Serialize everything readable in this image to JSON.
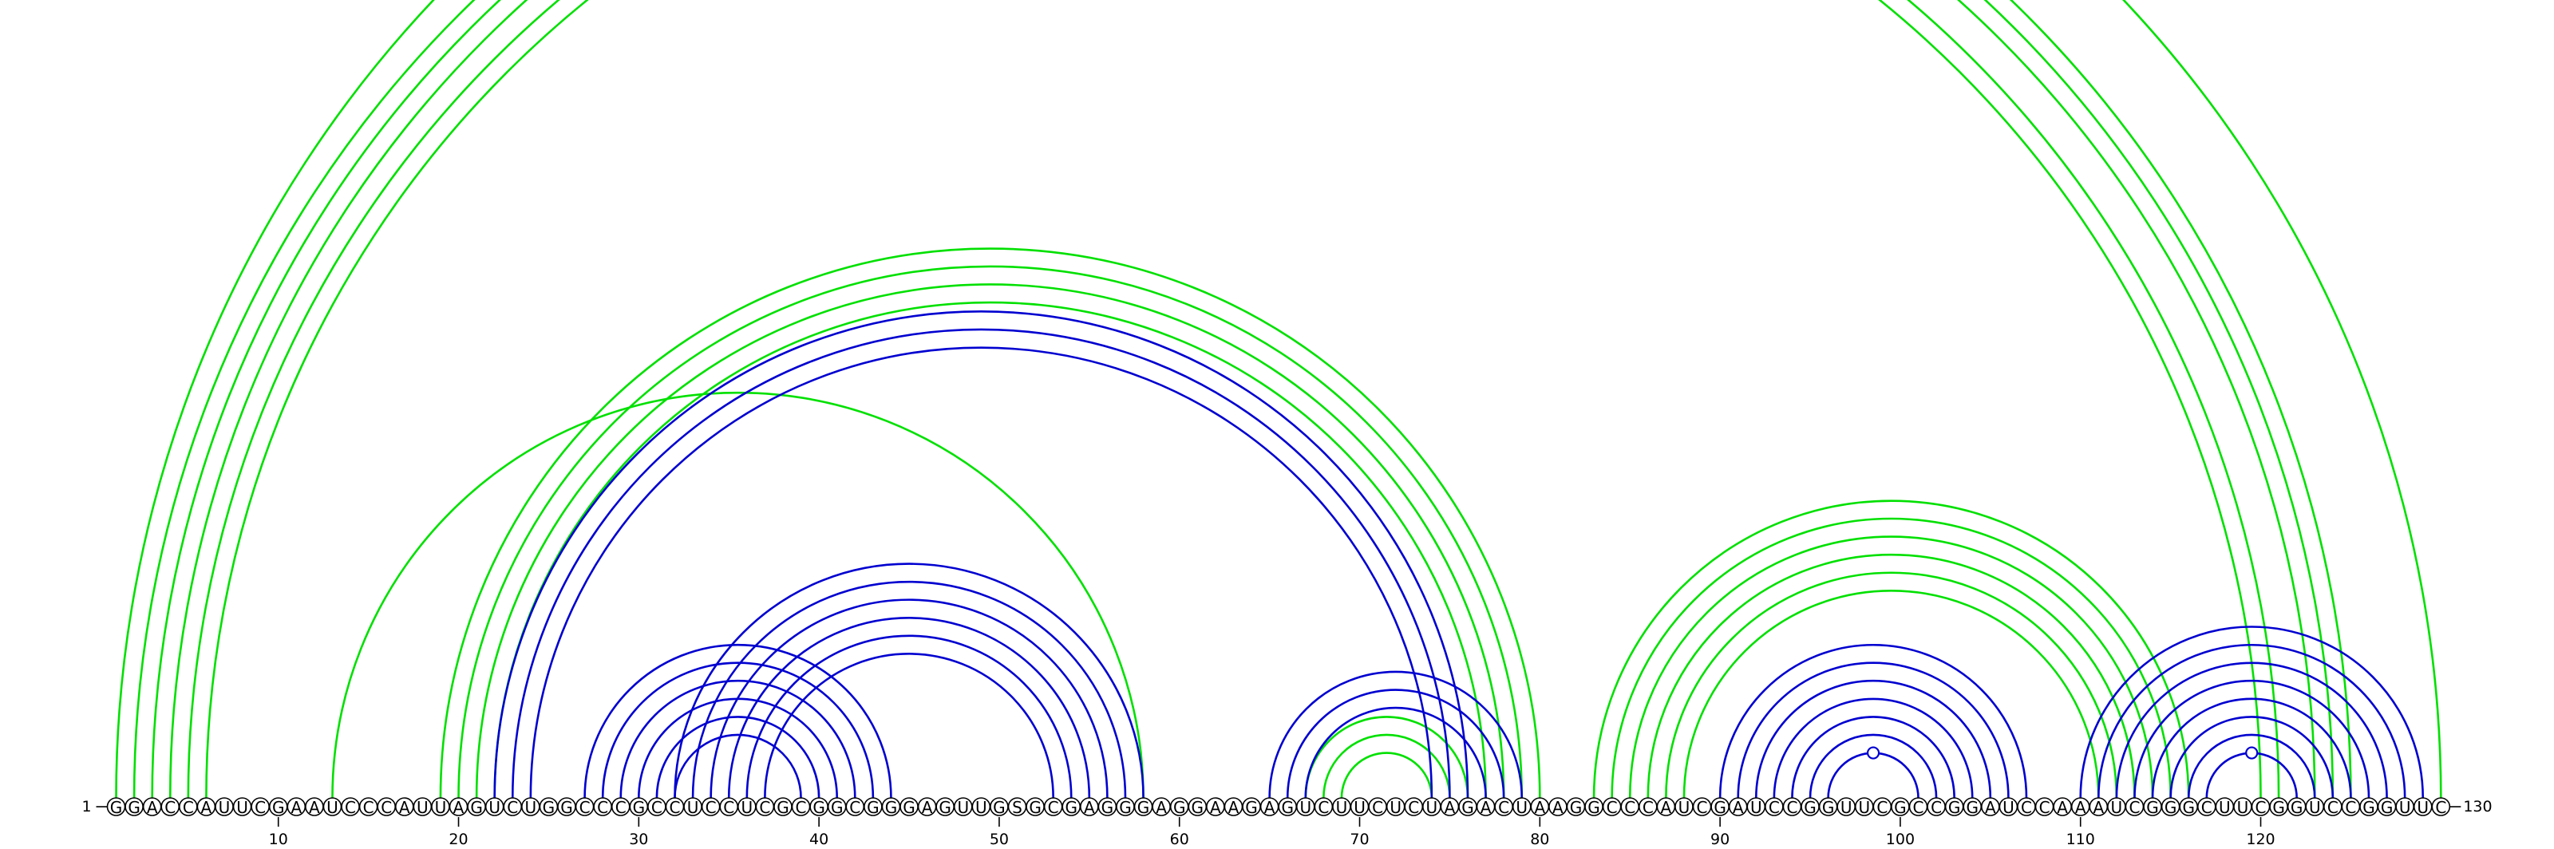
{
  "sequence": "GGACCAUUCGAAUCCCAUUAGUCUGGCCCGCCUCCUCGCGGCGGGAGUUGSGCGAGGGAGGAAGAGUCUUCUCUAGACUAAGGCCCAUCGAUCCGGUUCGCCGGAUCCAAAUCGGGCUUCGGUCCGGUUC",
  "start_label": "1",
  "end_label": "130",
  "ticks": [
    10,
    20,
    30,
    40,
    50,
    60,
    70,
    80,
    90,
    100,
    110,
    120
  ],
  "colors": {
    "green": "#00e000",
    "blue": "#0000d0"
  },
  "chart_data": {
    "type": "arc-diagram",
    "sequence_length": 130,
    "green_helices": [
      {
        "i": 1,
        "j": 130,
        "n": 1,
        "marker": true
      },
      {
        "i": 2,
        "j": 125,
        "n": 3
      },
      {
        "i": 5,
        "j": 121,
        "n": 2
      },
      {
        "i": 13,
        "j": 58,
        "n": 1
      },
      {
        "i": 19,
        "j": 80,
        "n": 2
      },
      {
        "i": 21,
        "j": 78,
        "n": 2
      },
      {
        "i": 67,
        "j": 76,
        "n": 3
      },
      {
        "i": 83,
        "j": 116,
        "n": 3
      },
      {
        "i": 86,
        "j": 113,
        "n": 3
      }
    ],
    "blue_helices": [
      {
        "i": 22,
        "j": 76,
        "n": 3
      },
      {
        "i": 27,
        "j": 44,
        "n": 6
      },
      {
        "i": 32,
        "j": 58,
        "n": 6
      },
      {
        "i": 65,
        "j": 79,
        "n": 3
      },
      {
        "i": 90,
        "j": 107,
        "n": 7,
        "marker": true
      },
      {
        "i": 110,
        "j": 129,
        "n": 8,
        "marker": true
      }
    ]
  }
}
